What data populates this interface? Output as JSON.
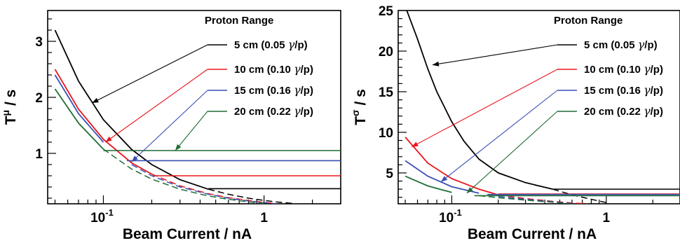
{
  "chart_data": [
    {
      "type": "line",
      "ylabel": "T^μ / s",
      "ylabel_main": "T",
      "ylabel_sup": "μ",
      "ylabel_unit": " / s",
      "xlabel": "Beam Current / nA",
      "x_scale": "log",
      "xlim": [
        0.045,
        3.0
      ],
      "ylim": [
        0.1,
        3.55
      ],
      "x_ticks": [
        {
          "value": 0.1,
          "base": "10",
          "exp": "-1"
        },
        {
          "value": 1,
          "base": "1",
          "exp": ""
        }
      ],
      "y_ticks": [
        {
          "value": 1,
          "label": "1"
        },
        {
          "value": 2,
          "label": "2"
        },
        {
          "value": 3,
          "label": "3"
        }
      ],
      "legend_title": "Proton Range",
      "legend_position": "top-right",
      "series": [
        {
          "name": "5 cm (0.05 γ/p)",
          "range": "5 cm",
          "ratio_open": " (0.05 ",
          "gamma": "γ",
          "ratio_close": "/p)",
          "color": "#000000",
          "curve": [
            [
              0.05,
              3.2
            ],
            [
              0.07,
              2.29
            ],
            [
              0.1,
              1.6
            ],
            [
              0.15,
              1.07
            ],
            [
              0.2,
              0.8
            ],
            [
              0.3,
              0.53
            ],
            [
              0.45,
              0.36
            ],
            [
              0.6,
              0.27
            ],
            [
              0.8,
              0.2
            ],
            [
              1.0,
              0.16
            ],
            [
              1.2,
              0.133
            ],
            [
              1.5,
              0.107
            ]
          ],
          "plateau": 0.37,
          "plateau_start": 0.45,
          "arrow_to": [
            0.085,
            1.9
          ],
          "legend_anchor": [
            0.5,
            3.2
          ]
        },
        {
          "name": "10 cm (0.10 γ/p)",
          "range": "10 cm",
          "ratio_open": " (0.10 ",
          "gamma": "γ",
          "ratio_close": "/p)",
          "color": "#e8161d",
          "curve": [
            [
              0.05,
              2.5
            ],
            [
              0.07,
              1.79
            ],
            [
              0.1,
              1.25
            ],
            [
              0.15,
              0.83
            ],
            [
              0.2,
              0.63
            ],
            [
              0.3,
              0.42
            ],
            [
              0.45,
              0.28
            ],
            [
              0.6,
              0.21
            ],
            [
              0.8,
              0.16
            ],
            [
              1.0,
              0.125
            ],
            [
              1.2,
              0.104
            ]
          ],
          "plateau": 0.6,
          "plateau_start": 0.2,
          "arrow_to": [
            0.103,
            1.2
          ],
          "legend_anchor": [
            0.5,
            2.65
          ]
        },
        {
          "name": "15 cm (0.16 γ/p)",
          "range": "15 cm",
          "ratio_open": " (0.16 ",
          "gamma": "γ",
          "ratio_close": "/p)",
          "color": "#3a4fb1",
          "curve": [
            [
              0.05,
              2.4
            ],
            [
              0.07,
              1.71
            ],
            [
              0.1,
              1.2
            ],
            [
              0.15,
              0.8
            ],
            [
              0.2,
              0.6
            ],
            [
              0.3,
              0.4
            ],
            [
              0.45,
              0.27
            ],
            [
              0.6,
              0.2
            ],
            [
              0.8,
              0.15
            ],
            [
              1.0,
              0.12
            ],
            [
              1.2,
              0.1
            ]
          ],
          "plateau": 0.87,
          "plateau_start": 0.14,
          "arrow_to": [
            0.15,
            0.85
          ],
          "legend_anchor": [
            0.5,
            2.2
          ]
        },
        {
          "name": "20 cm (0.22 γ/p)",
          "range": "20 cm",
          "ratio_open": " (0.22 ",
          "gamma": "γ",
          "ratio_close": "/p)",
          "color": "#1e6d35",
          "curve": [
            [
              0.05,
              2.15
            ],
            [
              0.07,
              1.54
            ],
            [
              0.1,
              1.075
            ],
            [
              0.15,
              0.72
            ],
            [
              0.2,
              0.54
            ],
            [
              0.3,
              0.36
            ],
            [
              0.45,
              0.24
            ],
            [
              0.6,
              0.18
            ],
            [
              0.8,
              0.134
            ],
            [
              1.0,
              0.107
            ]
          ],
          "plateau": 1.05,
          "plateau_start": 0.1,
          "arrow_to": [
            0.28,
            1.05
          ],
          "legend_anchor": [
            0.5,
            1.75
          ]
        }
      ]
    },
    {
      "type": "line",
      "ylabel": "T^σ / s",
      "ylabel_main": "T",
      "ylabel_sup": "σ",
      "ylabel_unit": " / s",
      "xlabel": "Beam Current / nA",
      "x_scale": "log",
      "xlim": [
        0.045,
        3.0
      ],
      "ylim": [
        1.2,
        25.0
      ],
      "x_ticks": [
        {
          "value": 0.1,
          "base": "10",
          "exp": "-1"
        },
        {
          "value": 1,
          "base": "1",
          "exp": ""
        }
      ],
      "y_ticks": [
        {
          "value": 5,
          "label": "5"
        },
        {
          "value": 10,
          "label": "10"
        },
        {
          "value": 15,
          "label": "15"
        },
        {
          "value": 20,
          "label": "20"
        },
        {
          "value": 25,
          "label": "25"
        }
      ],
      "legend_title": "Proton Range",
      "legend_position": "top-right",
      "series": [
        {
          "name": "5 cm (0.05 γ/p)",
          "range": "5 cm",
          "ratio_open": " (0.05 ",
          "gamma": "γ",
          "ratio_close": "/p)",
          "color": "#000000",
          "curve": [
            [
              0.05,
              25.5
            ],
            [
              0.06,
              21.5
            ],
            [
              0.07,
              17.8
            ],
            [
              0.08,
              15.0
            ],
            [
              0.1,
              11.3
            ],
            [
              0.12,
              8.9
            ],
            [
              0.15,
              6.7
            ],
            [
              0.2,
              5.0
            ],
            [
              0.3,
              3.8
            ],
            [
              0.45,
              3.0
            ],
            [
              0.6,
              2.3
            ],
            [
              0.8,
              1.75
            ],
            [
              1.0,
              1.35
            ]
          ],
          "plateau": 3.0,
          "plateau_start": 0.45,
          "arrow_to": [
            0.075,
            18.3
          ],
          "legend_anchor": [
            0.5,
            21.0
          ]
        },
        {
          "name": "10 cm (0.10 γ/p)",
          "range": "10 cm",
          "ratio_open": " (0.10 ",
          "gamma": "γ",
          "ratio_close": "/p)",
          "color": "#e8161d",
          "curve": [
            [
              0.05,
              9.4
            ],
            [
              0.07,
              6.2
            ],
            [
              0.1,
              4.3
            ],
            [
              0.15,
              3.0
            ],
            [
              0.2,
              2.3
            ],
            [
              0.3,
              1.85
            ],
            [
              0.45,
              1.5
            ],
            [
              0.6,
              1.3
            ],
            [
              0.75,
              1.2
            ]
          ],
          "plateau": 2.4,
          "plateau_start": 0.2,
          "arrow_to": [
            0.055,
            8.2
          ],
          "legend_anchor": [
            0.5,
            17.6
          ]
        },
        {
          "name": "15 cm (0.16 γ/p)",
          "range": "15 cm",
          "ratio_open": " (0.16 ",
          "gamma": "γ",
          "ratio_close": "/p)",
          "color": "#3a4fb1",
          "curve": [
            [
              0.05,
              6.5
            ],
            [
              0.07,
              4.6
            ],
            [
              0.1,
              3.3
            ],
            [
              0.15,
              2.5
            ],
            [
              0.2,
              2.1
            ],
            [
              0.3,
              1.75
            ],
            [
              0.45,
              1.45
            ],
            [
              0.6,
              1.25
            ]
          ],
          "plateau": 2.35,
          "plateau_start": 0.17,
          "arrow_to": [
            0.085,
            3.9
          ],
          "legend_anchor": [
            0.5,
            14.3
          ]
        },
        {
          "name": "20 cm (0.22 γ/p)",
          "range": "20 cm",
          "ratio_open": " (0.22 ",
          "gamma": "γ",
          "ratio_close": "/p)",
          "color": "#1e6d35",
          "curve": [
            [
              0.05,
              4.6
            ],
            [
              0.07,
              3.4
            ],
            [
              0.1,
              2.6
            ],
            [
              0.15,
              2.2
            ],
            [
              0.2,
              1.95
            ],
            [
              0.3,
              1.65
            ],
            [
              0.45,
              1.4
            ],
            [
              0.6,
              1.2
            ]
          ],
          "plateau": 2.2,
          "plateau_start": 0.14,
          "arrow_to": [
            0.125,
            2.5
          ],
          "legend_anchor": [
            0.5,
            11.1
          ]
        }
      ]
    }
  ]
}
